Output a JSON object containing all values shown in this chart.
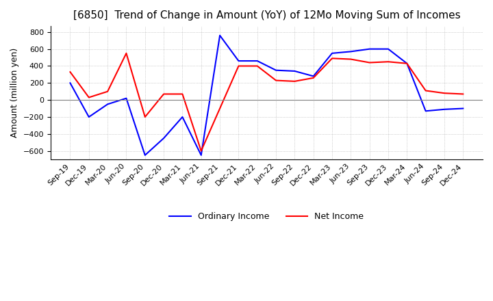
{
  "title": "[6850]  Trend of Change in Amount (YoY) of 12Mo Moving Sum of Incomes",
  "ylabel": "Amount (million yen)",
  "ylim": [
    -700,
    870
  ],
  "yticks": [
    -600,
    -400,
    -200,
    0,
    200,
    400,
    600,
    800
  ],
  "x_labels": [
    "Sep-19",
    "Dec-19",
    "Mar-20",
    "Jun-20",
    "Sep-20",
    "Dec-20",
    "Mar-21",
    "Jun-21",
    "Sep-21",
    "Dec-21",
    "Mar-22",
    "Jun-22",
    "Sep-22",
    "Dec-22",
    "Mar-23",
    "Jun-23",
    "Sep-23",
    "Dec-23",
    "Mar-24",
    "Jun-24",
    "Sep-24",
    "Dec-24"
  ],
  "ordinary_income": [
    200,
    -200,
    -50,
    20,
    -650,
    -450,
    -200,
    -650,
    760,
    460,
    460,
    350,
    340,
    280,
    550,
    570,
    600,
    600,
    430,
    -130,
    -110,
    -100
  ],
  "net_income": [
    330,
    30,
    100,
    550,
    -200,
    70,
    70,
    -600,
    -100,
    400,
    400,
    230,
    220,
    260,
    490,
    480,
    440,
    450,
    430,
    110,
    80,
    70
  ],
  "ordinary_color": "#0000FF",
  "net_color": "#FF0000",
  "grid_color": "#AAAAAA",
  "background_color": "#FFFFFF",
  "legend_ordinary": "Ordinary Income",
  "legend_net": "Net Income",
  "title_fontsize": 11,
  "axis_fontsize": 9,
  "tick_fontsize": 8
}
